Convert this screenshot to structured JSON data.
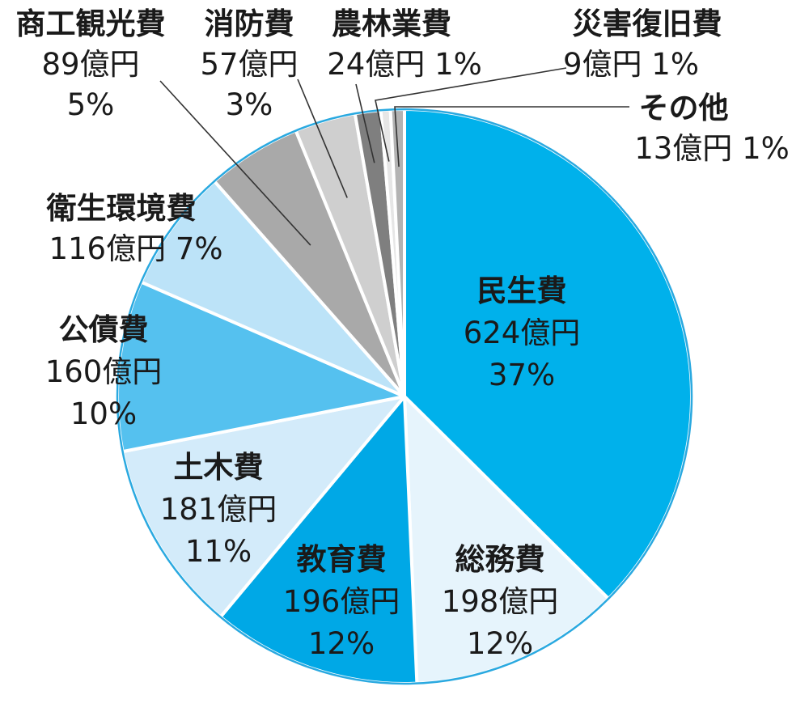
{
  "chart_data": {
    "type": "pie",
    "unit": "億円",
    "slices": [
      {
        "name": "民生費",
        "value": 624,
        "value_label": "624億円",
        "percent_label": "37%",
        "color": "#00b1eb"
      },
      {
        "name": "総務費",
        "value": 198,
        "value_label": "198億円",
        "percent_label": "12%",
        "color": "#e6f4fc"
      },
      {
        "name": "教育費",
        "value": 196,
        "value_label": "196億円",
        "percent_label": "12%",
        "color": "#00a8e6"
      },
      {
        "name": "土木費",
        "value": 181,
        "value_label": "181億円",
        "percent_label": "11%",
        "color": "#d3ebfa"
      },
      {
        "name": "公債費",
        "value": 160,
        "value_label": "160億円",
        "percent_label": "10%",
        "color": "#55c1ef"
      },
      {
        "name": "衛生環境費",
        "value": 116,
        "value_label": "116億円",
        "percent_label": "7%",
        "color": "#bce3f8"
      },
      {
        "name": "商工観光費",
        "value": 89,
        "value_label": "89億円",
        "percent_label": "5%",
        "color": "#a9a9a9"
      },
      {
        "name": "消防費",
        "value": 57,
        "value_label": "57億円",
        "percent_label": "3%",
        "color": "#cfcfcf"
      },
      {
        "name": "農林業費",
        "value": 24,
        "value_label": "24億円",
        "percent_label": "1%",
        "color": "#7f7f7f"
      },
      {
        "name": "災害復旧費",
        "value": 9,
        "value_label": "9億円",
        "percent_label": "1%",
        "color": "#e6e6e6"
      },
      {
        "name": "その他",
        "value": 13,
        "value_label": "13億円",
        "percent_label": "1%",
        "color": "#b3b3b3"
      }
    ],
    "start": "12 o'clock",
    "direction": "clockwise",
    "outline_color": "#2aa9e0",
    "separator_color": "#ffffff"
  }
}
